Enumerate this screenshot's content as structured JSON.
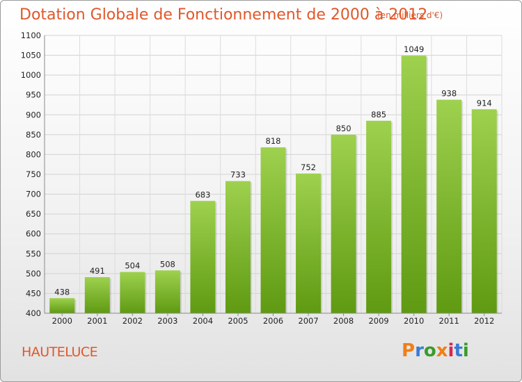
{
  "title": "Dotation Globale de Fonctionnement de 2000 à 2012",
  "subtitle": "(en milliers d'€)",
  "commune": "HAUTELUCE",
  "logo": {
    "letters": [
      "P",
      "r",
      "o",
      "x",
      "i",
      "t",
      "i"
    ],
    "colors": [
      "#f07f17",
      "#3a7bd5",
      "#3a9b2a",
      "#f07f17",
      "#d8284a",
      "#3a7bd5",
      "#3a9b2a"
    ]
  },
  "colors": {
    "bar_top": "#9ed14e",
    "bar_bottom": "#5f9a12",
    "text_accent": "#e0572a"
  },
  "chart_data": {
    "type": "bar",
    "categories": [
      "2000",
      "2001",
      "2002",
      "2003",
      "2004",
      "2005",
      "2006",
      "2007",
      "2008",
      "2009",
      "2010",
      "2011",
      "2012"
    ],
    "values": [
      438,
      491,
      504,
      508,
      683,
      733,
      818,
      752,
      850,
      885,
      1049,
      938,
      914
    ],
    "yticks": [
      400,
      450,
      500,
      550,
      600,
      650,
      700,
      750,
      800,
      850,
      900,
      950,
      1000,
      1050,
      1100
    ],
    "ylim": [
      400,
      1100
    ],
    "grid": true,
    "title": "Dotation Globale de Fonctionnement de 2000 à 2012",
    "xlabel": "",
    "ylabel": ""
  }
}
